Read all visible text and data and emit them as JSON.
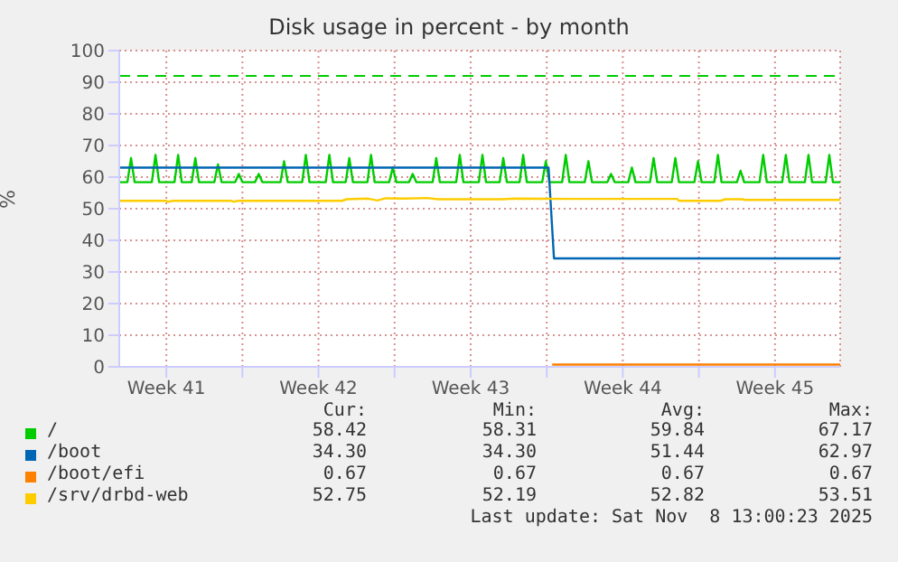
{
  "chart_data": {
    "type": "line",
    "title": "Disk usage in percent - by month",
    "ylabel": "%",
    "xlim": [
      "2025-10-06T08:00",
      "2025-11-08T12:00"
    ],
    "xticks": [
      {
        "value": "2025-10-08T12:00",
        "label": "Week 41"
      },
      {
        "value": "2025-10-12T00:00",
        "label": null
      },
      {
        "value": "2025-10-15T12:00",
        "label": "Week 42"
      },
      {
        "value": "2025-10-19T00:00",
        "label": null
      },
      {
        "value": "2025-10-22T12:00",
        "label": "Week 43"
      },
      {
        "value": "2025-10-26T00:00",
        "label": null
      },
      {
        "value": "2025-10-29T12:00",
        "label": "Week 44"
      },
      {
        "value": "2025-11-02T00:00",
        "label": null
      },
      {
        "value": "2025-11-05T12:00",
        "label": "Week 45"
      }
    ],
    "ylim": [
      0,
      100
    ],
    "yticks": [
      0,
      10,
      20,
      30,
      40,
      50,
      60,
      70,
      80,
      90,
      100
    ],
    "grid": true,
    "legend": "bottom",
    "marker": "none",
    "line_style": "solid",
    "ref_lines": [
      {
        "axis": "y",
        "value": 92,
        "color": "#00cc00",
        "line_style": "dashed"
      }
    ],
    "series": [
      {
        "name": "/",
        "color": "#00cc00",
        "x": [
          "2025-10-06T08:00",
          "2025-10-06T17:00",
          "2025-10-06T21:00",
          "2025-10-07T01:00",
          "2025-10-07T20:00",
          "2025-10-08T00:00",
          "2025-10-08T04:00",
          "2025-10-08T21:00",
          "2025-10-09T01:00",
          "2025-10-09T05:00",
          "2025-10-09T16:00",
          "2025-10-09T20:00",
          "2025-10-10T00:00",
          "2025-10-10T17:00",
          "2025-10-10T21:00",
          "2025-10-11T01:00",
          "2025-10-11T16:00",
          "2025-10-11T20:00",
          "2025-10-12T00:00",
          "2025-10-12T14:00",
          "2025-10-12T18:00",
          "2025-10-12T22:00",
          "2025-10-13T18:00",
          "2025-10-13T22:00",
          "2025-10-14T02:00",
          "2025-10-14T18:00",
          "2025-10-14T22:00",
          "2025-10-15T02:00",
          "2025-10-15T20:00",
          "2025-10-16T00:00",
          "2025-10-16T04:00",
          "2025-10-16T18:00",
          "2025-10-16T22:00",
          "2025-10-17T02:00",
          "2025-10-17T18:00",
          "2025-10-17T22:00",
          "2025-10-18T02:00",
          "2025-10-18T18:00",
          "2025-10-18T22:00",
          "2025-10-19T02:00",
          "2025-10-19T16:00",
          "2025-10-19T20:00",
          "2025-10-20T00:00",
          "2025-10-20T18:00",
          "2025-10-20T22:00",
          "2025-10-21T02:00",
          "2025-10-21T20:00",
          "2025-10-22T00:00",
          "2025-10-22T04:00",
          "2025-10-22T21:00",
          "2025-10-23T01:00",
          "2025-10-23T05:00",
          "2025-10-23T20:00",
          "2025-10-24T00:00",
          "2025-10-24T04:00",
          "2025-10-24T18:00",
          "2025-10-24T22:00",
          "2025-10-25T02:00",
          "2025-10-25T19:00",
          "2025-10-25T23:00",
          "2025-10-26T03:00",
          "2025-10-26T17:00",
          "2025-10-26T21:00",
          "2025-10-27T01:00",
          "2025-10-27T18:00",
          "2025-10-27T22:00",
          "2025-10-28T02:00",
          "2025-10-28T19:00",
          "2025-10-28T23:00",
          "2025-10-29T03:00",
          "2025-10-29T18:00",
          "2025-10-29T22:00",
          "2025-10-30T02:00",
          "2025-10-30T18:00",
          "2025-10-30T22:00",
          "2025-10-31T02:00",
          "2025-10-31T18:00",
          "2025-10-31T22:00",
          "2025-11-01T02:00",
          "2025-11-01T19:00",
          "2025-11-01T23:00",
          "2025-11-02T03:00",
          "2025-11-02T17:00",
          "2025-11-02T21:00",
          "2025-11-03T01:00",
          "2025-11-03T18:00",
          "2025-11-03T22:00",
          "2025-11-04T02:00",
          "2025-11-04T19:00",
          "2025-11-04T23:00",
          "2025-11-05T03:00",
          "2025-11-05T20:00",
          "2025-11-06T00:00",
          "2025-11-06T04:00",
          "2025-11-06T21:00",
          "2025-11-07T01:00",
          "2025-11-07T05:00",
          "2025-11-07T20:00",
          "2025-11-08T00:00",
          "2025-11-08T04:00",
          "2025-11-08T12:00"
        ],
        "values": [
          58.4,
          58.4,
          66,
          58.4,
          58.4,
          67,
          58.4,
          58.4,
          67,
          58.4,
          58.4,
          66,
          58.4,
          58.4,
          64,
          58.4,
          58.4,
          61,
          58.4,
          58.4,
          61,
          58.4,
          58.4,
          65,
          58.4,
          58.4,
          67,
          58.4,
          58.4,
          67,
          58.4,
          58.4,
          66,
          58.4,
          58.4,
          67,
          58.4,
          58.4,
          63,
          58.4,
          58.4,
          61,
          58.4,
          58.4,
          66,
          58.4,
          58.4,
          67,
          58.4,
          58.4,
          67,
          58.4,
          58.4,
          66,
          58.4,
          58.4,
          67,
          58.4,
          58.4,
          65,
          58.4,
          58.4,
          67,
          58.4,
          58.4,
          65,
          58.4,
          58.4,
          61,
          58.4,
          58.4,
          63,
          58.4,
          58.4,
          66,
          58.4,
          58.4,
          66,
          58.4,
          58.4,
          65,
          58.4,
          58.4,
          67,
          58.4,
          58.4,
          62,
          58.4,
          58.4,
          67,
          58.4,
          58.4,
          67,
          58.4,
          58.4,
          67,
          58.4,
          58.4,
          67,
          58.4,
          58.4
        ]
      },
      {
        "name": "/boot",
        "color": "#0066b3",
        "x": [
          "2025-10-06T08:00",
          "2025-10-26T02:00",
          "2025-10-26T08:00",
          "2025-11-08T12:00"
        ],
        "values": [
          63,
          63,
          34.3,
          34.3
        ]
      },
      {
        "name": "/boot/efi",
        "color": "#ff8000",
        "x": [
          "2025-10-26T06:00",
          "2025-11-08T12:00"
        ],
        "values": [
          0.7,
          0.7
        ]
      },
      {
        "name": "/srv/drbd-web",
        "color": "#ffcc00",
        "x": [
          "2025-10-06T08:00",
          "2025-10-08T12:00",
          "2025-10-08T14:00",
          "2025-10-08T19:00",
          "2025-10-11T12:00",
          "2025-10-11T14:00",
          "2025-10-11T19:00",
          "2025-10-16T14:00",
          "2025-10-16T19:00",
          "2025-10-17T19:00",
          "2025-10-18T05:00",
          "2025-10-18T14:00",
          "2025-10-19T12:00",
          "2025-10-20T12:00",
          "2025-10-21T00:00",
          "2025-10-24T00:00",
          "2025-10-24T12:00",
          "2025-10-27T00:00",
          "2025-11-01T00:00",
          "2025-11-01T02:00",
          "2025-11-03T00:00",
          "2025-11-03T05:00",
          "2025-11-04T00:00",
          "2025-11-04T02:00",
          "2025-11-08T12:00"
        ],
        "values": [
          52.5,
          52.5,
          52.2,
          52.5,
          52.5,
          52.2,
          52.5,
          52.5,
          53.0,
          53.2,
          52.6,
          53.3,
          53.2,
          53.4,
          53.0,
          53.0,
          53.2,
          53.1,
          53.1,
          52.5,
          52.5,
          53.0,
          53.0,
          52.8,
          52.8
        ]
      }
    ],
    "annotations": [
      "Cur:",
      "Min:",
      "Avg:",
      "Max:",
      "58.42",
      "58.31",
      "59.84",
      "67.17",
      "34.30",
      "34.30",
      "51.44",
      "62.97",
      "0.67",
      "0.67",
      "0.67",
      "0.67",
      "52.75",
      "52.19",
      "52.82",
      "53.51",
      "Last update: Sat Nov  8 13:00:23 2025"
    ]
  }
}
